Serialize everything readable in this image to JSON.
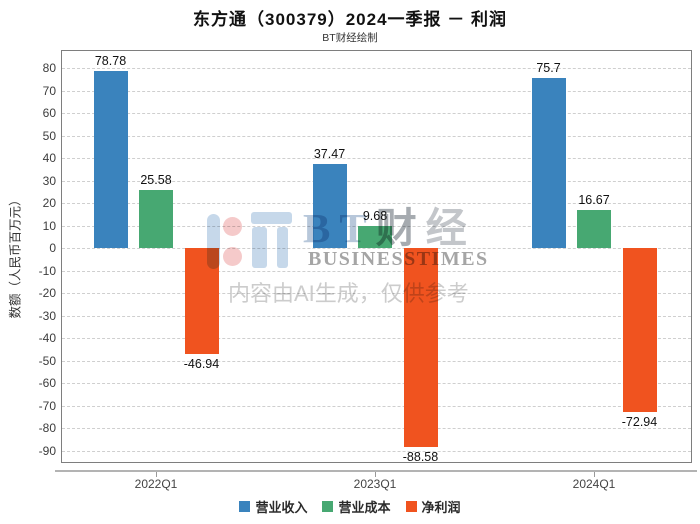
{
  "header": {
    "title": "东方通（300379）2024一季报 － 利润",
    "subtitle": "BT财经绘制"
  },
  "y_axis": {
    "label": "数额（人民币百万元）",
    "tick_labels": [
      "80",
      "70",
      "60",
      "50",
      "40",
      "30",
      "20",
      "10",
      "0",
      "-10",
      "-20",
      "-30",
      "-40",
      "-50",
      "-60",
      "-70",
      "-80",
      "-90"
    ]
  },
  "x_axis": {
    "categories": [
      "2022Q1",
      "2023Q1",
      "2024Q1"
    ]
  },
  "legend": {
    "items": [
      {
        "label": "营业收入",
        "color": "#3a83bd"
      },
      {
        "label": "营业成本",
        "color": "#47a872"
      },
      {
        "label": "净利润",
        "color": "#f0531f"
      }
    ]
  },
  "watermark": {
    "bt_b": "B",
    "bt_t": "T",
    "bt_cai": "财",
    "bt_jing": "经",
    "business_times": "BUSINESSTIMES",
    "disclaimer": "内容由AI生成，仅供参考"
  },
  "chart_data": {
    "type": "bar",
    "title": "东方通（300379）2024一季报 － 利润",
    "subtitle": "BT财经绘制",
    "categories": [
      "2022Q1",
      "2023Q1",
      "2024Q1"
    ],
    "series": [
      {
        "name": "营业收入",
        "color": "#3a83bd",
        "values": [
          78.78,
          37.47,
          75.7
        ],
        "labels": [
          "78.78",
          "37.47",
          "75.7"
        ]
      },
      {
        "name": "营业成本",
        "color": "#47a872",
        "values": [
          25.58,
          9.68,
          16.67
        ],
        "labels": [
          "25.58",
          "9.68",
          "16.67"
        ]
      },
      {
        "name": "净利润",
        "color": "#f0531f",
        "values": [
          -46.94,
          -88.58,
          -72.94
        ],
        "labels": [
          "-46.94",
          "-88.58",
          "-72.94"
        ]
      }
    ],
    "xlabel": "",
    "ylabel": "数额（人民币百万元）",
    "ylim": [
      -90,
      80
    ],
    "ytick_step": 10,
    "grid": true,
    "grid_style": "dashed",
    "legend_position": "bottom"
  }
}
